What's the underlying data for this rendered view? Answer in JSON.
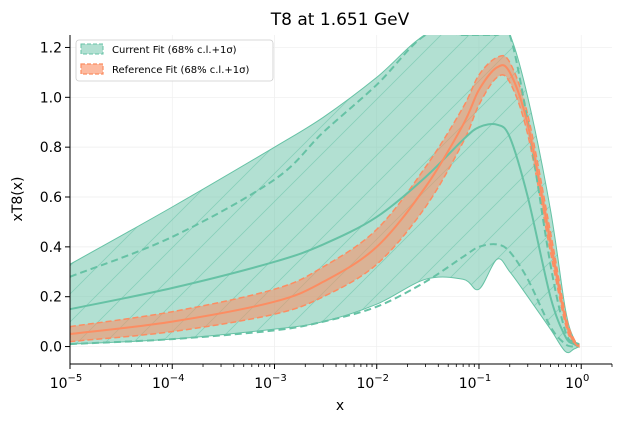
{
  "chart_data": {
    "type": "line",
    "title": "T8 at 1.651 GeV",
    "xlabel": "x",
    "ylabel": "xT8(x)",
    "xscale": "log",
    "xlim": [
      1e-05,
      2
    ],
    "ylim": [
      -0.07,
      1.25
    ],
    "grid": true,
    "legend_position": "top-left",
    "x_ticks": [
      {
        "value": 1e-05,
        "base": "10",
        "exp": "−5"
      },
      {
        "value": 0.0001,
        "base": "10",
        "exp": "−4"
      },
      {
        "value": 0.001,
        "base": "10",
        "exp": "−3"
      },
      {
        "value": 0.01,
        "base": "10",
        "exp": "−2"
      },
      {
        "value": 0.1,
        "base": "10",
        "exp": "−1"
      },
      {
        "value": 1,
        "base": "10",
        "exp": "0"
      }
    ],
    "y_ticks": [
      {
        "value": 0.0,
        "label": "0.0"
      },
      {
        "value": 0.2,
        "label": "0.2"
      },
      {
        "value": 0.4,
        "label": "0.4"
      },
      {
        "value": 0.6,
        "label": "0.6"
      },
      {
        "value": 0.8,
        "label": "0.8"
      },
      {
        "value": 1.0,
        "label": "1.0"
      },
      {
        "value": 1.2,
        "label": "1.2"
      }
    ],
    "x": [
      1e-05,
      0.0001,
      0.001,
      0.003,
      0.01,
      0.03,
      0.07,
      0.1,
      0.15,
      0.2,
      0.3,
      0.5,
      0.7,
      0.85,
      0.95
    ],
    "series": [
      {
        "name": "Current Fit (68% c.l.+1σ)",
        "color": "#66c2a5",
        "central": [
          0.15,
          0.235,
          0.34,
          0.41,
          0.52,
          0.68,
          0.83,
          0.88,
          0.89,
          0.84,
          0.6,
          0.2,
          0.04,
          0.01,
          0.0
        ],
        "band_lower": [
          0.01,
          0.03,
          0.07,
          0.1,
          0.17,
          0.27,
          0.27,
          0.23,
          0.35,
          0.3,
          0.2,
          0.07,
          -0.02,
          -0.01,
          0.0
        ],
        "band_upper": [
          0.33,
          0.56,
          0.8,
          0.92,
          1.08,
          1.25,
          1.25,
          1.25,
          1.25,
          1.25,
          1.0,
          0.55,
          0.15,
          0.03,
          0.01
        ],
        "dashed_lower": [
          0.01,
          0.03,
          0.065,
          0.1,
          0.16,
          0.26,
          0.36,
          0.4,
          0.41,
          0.38,
          0.27,
          0.08,
          0.01,
          0.0,
          0.0
        ],
        "dashed_upper": [
          0.28,
          0.44,
          0.67,
          0.86,
          1.05,
          1.25,
          1.25,
          1.25,
          1.25,
          1.25,
          0.9,
          0.33,
          0.06,
          0.02,
          0.01
        ]
      },
      {
        "name": "Reference Fit (68% c.l.+1σ)",
        "color": "#fc8d62",
        "central": [
          0.05,
          0.1,
          0.18,
          0.26,
          0.4,
          0.64,
          0.89,
          1.03,
          1.12,
          1.1,
          0.89,
          0.42,
          0.11,
          0.02,
          0.0
        ],
        "band_lower": [
          0.02,
          0.06,
          0.13,
          0.2,
          0.33,
          0.56,
          0.82,
          0.97,
          1.08,
          1.06,
          0.85,
          0.38,
          0.09,
          0.01,
          0.0
        ],
        "band_upper": [
          0.08,
          0.14,
          0.23,
          0.32,
          0.47,
          0.72,
          0.96,
          1.09,
          1.16,
          1.14,
          0.93,
          0.46,
          0.13,
          0.03,
          0.01
        ]
      }
    ]
  }
}
